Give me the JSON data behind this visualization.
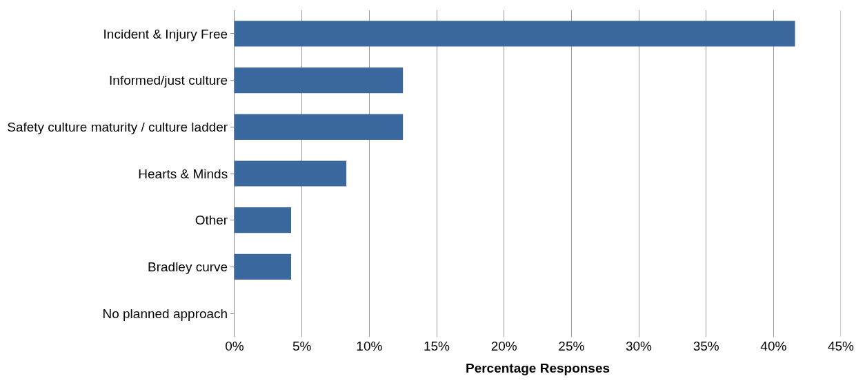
{
  "chart_data": {
    "type": "bar",
    "orientation": "horizontal",
    "xlabel": "Percentage Responses",
    "categories": [
      "Incident & Injury Free",
      "Informed/just culture",
      "Safety culture maturity / culture ladder",
      "Hearts & Minds",
      "Other",
      "Bradley curve",
      "No planned approach"
    ],
    "values": [
      41.6,
      12.5,
      12.5,
      8.3,
      4.2,
      4.2,
      0
    ],
    "color": "#3a689f",
    "xlim": [
      0,
      45
    ],
    "xticks": [
      {
        "value": 0,
        "label": "0%"
      },
      {
        "value": 5,
        "label": "5%"
      },
      {
        "value": 10,
        "label": "10%"
      },
      {
        "value": 15,
        "label": "15%"
      },
      {
        "value": 20,
        "label": "20%"
      },
      {
        "value": 25,
        "label": "25%"
      },
      {
        "value": 30,
        "label": "30%"
      },
      {
        "value": 35,
        "label": "35%"
      },
      {
        "value": 40,
        "label": "40%"
      },
      {
        "value": 45,
        "label": "45%"
      }
    ],
    "grid": "x",
    "legend": false
  }
}
